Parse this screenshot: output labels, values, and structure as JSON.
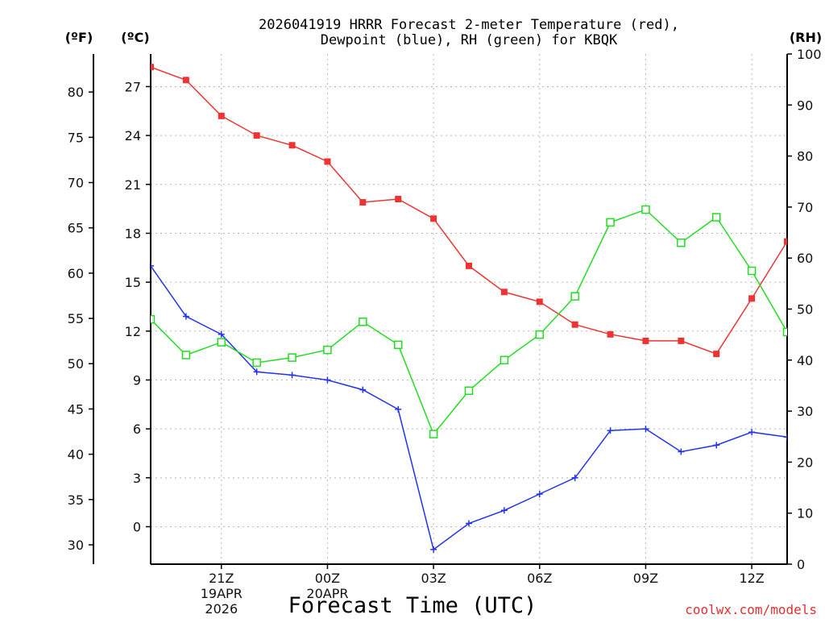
{
  "chart_data": {
    "type": "line",
    "title_lines": [
      "2026041919 HRRR Forecast 2-meter Temperature (red),",
      "Dewpoint (blue), RH (green) for KBQK"
    ],
    "xlabel": "Forecast Time (UTC)",
    "credit": "coolwx.com/models",
    "units": {
      "fahrenheit": "(ºF)",
      "celsius": "(ºC)",
      "rh": "(RH)"
    },
    "x_hours": [
      0,
      1,
      2,
      3,
      4,
      5,
      6,
      7,
      8,
      9,
      10,
      11,
      12,
      13,
      14,
      15,
      16,
      17,
      18
    ],
    "x_range": [
      0,
      18
    ],
    "x_ticks": [
      {
        "hour": 2,
        "label": "21Z",
        "date_lines": [
          "19APR",
          "2026"
        ]
      },
      {
        "hour": 5,
        "label": "00Z",
        "date_lines": [
          "20APR"
        ]
      },
      {
        "hour": 8,
        "label": "03Z",
        "date_lines": []
      },
      {
        "hour": 11,
        "label": "06Z",
        "date_lines": []
      },
      {
        "hour": 14,
        "label": "09Z",
        "date_lines": []
      },
      {
        "hour": 17,
        "label": "12Z",
        "date_lines": []
      }
    ],
    "celsius_axis": {
      "range": [
        -2.3,
        29.0
      ],
      "ticks": [
        0,
        3,
        6,
        9,
        12,
        15,
        18,
        21,
        24,
        27
      ]
    },
    "fahrenheit_axis": {
      "ticks": [
        30,
        35,
        40,
        45,
        50,
        55,
        60,
        65,
        70,
        75,
        80
      ]
    },
    "rh_axis": {
      "range": [
        0,
        100
      ],
      "ticks": [
        0,
        10,
        20,
        30,
        40,
        50,
        60,
        70,
        80,
        90,
        100
      ]
    },
    "grid": true,
    "series": [
      {
        "name": "Temperature",
        "axis": "celsius",
        "color": "#ee3333",
        "marker": "filled-square",
        "values": [
          28.2,
          27.4,
          25.2,
          24.0,
          23.4,
          22.4,
          19.9,
          20.1,
          18.9,
          16.0,
          14.4,
          13.8,
          12.4,
          11.8,
          11.4,
          11.4,
          10.6,
          14.0,
          17.5
        ]
      },
      {
        "name": "Dewpoint",
        "axis": "celsius",
        "color": "#2233ee",
        "marker": "plus",
        "values": [
          16.0,
          12.9,
          11.8,
          9.5,
          9.3,
          9.0,
          8.4,
          7.2,
          -1.4,
          0.2,
          1.0,
          2.0,
          3.0,
          5.9,
          6.0,
          4.6,
          5.0,
          5.8,
          5.5
        ]
      },
      {
        "name": "RH",
        "axis": "rh",
        "color": "#22dd22",
        "marker": "open-square",
        "values": [
          48.0,
          41.0,
          43.5,
          39.5,
          40.5,
          42.0,
          47.5,
          43.0,
          25.5,
          34.0,
          40.0,
          45.0,
          52.5,
          67.0,
          69.5,
          63.0,
          68.0,
          57.5,
          45.5
        ]
      }
    ]
  }
}
